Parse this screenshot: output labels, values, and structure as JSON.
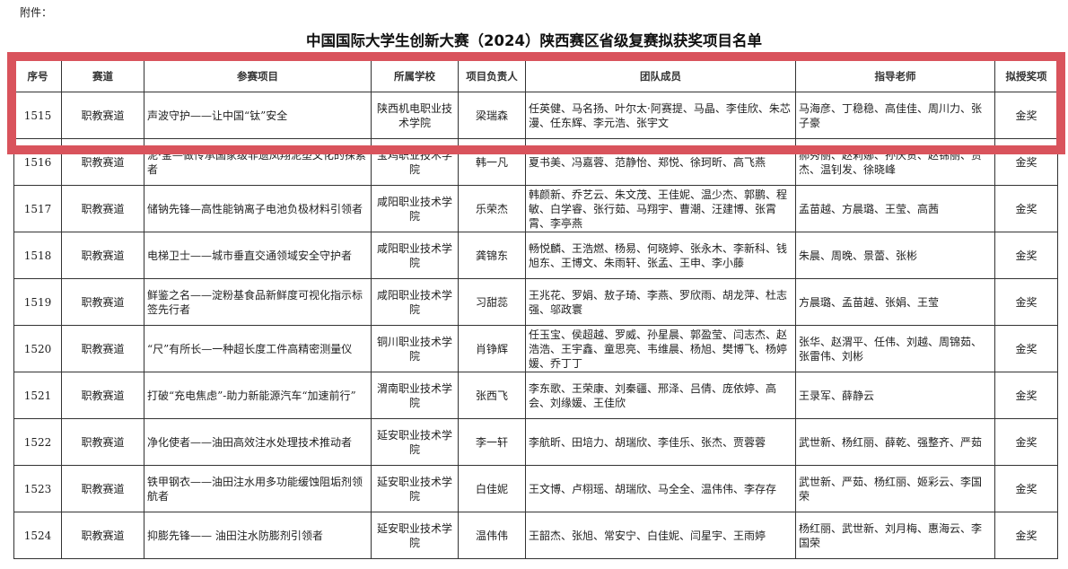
{
  "attachment_label": "附件：",
  "title": "中国国际大学生创新大赛（2024）陕西赛区省级复赛拟获奖项目名单",
  "highlight_color": "#d9535c",
  "table": {
    "headers": [
      "序号",
      "赛道",
      "参赛项目",
      "所属学校",
      "项目负责人",
      "团队成员",
      "指导老师",
      "拟授奖项"
    ],
    "rows": [
      [
        "1515",
        "职教赛道",
        "声波守护——让中国“钛”安全",
        "陕西机电职业技术学院",
        "梁瑞森",
        "任英健、马名扬、叶尔太·阿赛提、马晶、李佳欣、朱芯漫、任东辉、李元浩、张宇文",
        "马海彦、丁稳稳、高佳佳、周川力、张子豪",
        "金奖"
      ],
      [
        "1516",
        "职教赛道",
        "泥·釜—做传承国家级非遗凤翔泥塑文化的探索者",
        "宝鸡职业技术学院",
        "韩一凡",
        "夏书美、冯嘉蓉、范静怡、郑悦、徐珂昕、高飞燕",
        "郝秀丽、赵莉娜、孙庆贺、赵锦丽、贾杰、温钊发、徐晓峰",
        "金奖"
      ],
      [
        "1517",
        "职教赛道",
        "储钠先锋—高性能钠离子电池负极材料引领者",
        "咸阳职业技术学院",
        "乐荣杰",
        "韩颜新、乔艺云、朱文茂、王佳妮、温少杰、郭鹏、程敏、白学睿、张行茹、马翔宇、曹潮、汪建博、张霄霄、李亭燕",
        "孟苗越、方晨璐、王莹、高茜",
        "金奖"
      ],
      [
        "1518",
        "职教赛道",
        "电梯卫士——城市垂直交通领域安全守护者",
        "咸阳职业技术学院",
        "龚锦东",
        "畅悦麟、王浩燃、杨易、何晓婷、张永木、李新科、钱旭东、王博文、朱雨轩、张孟、王申、李小藤",
        "朱晨、周晚、景蕾、张彬",
        "金奖"
      ],
      [
        "1519",
        "职教赛道",
        "鲜鉴之名——淀粉基食品新鲜度可视化指示标签先行者",
        "咸阳职业技术学院",
        "习甜蕊",
        "王兆花、罗娟、敖子琦、李燕、罗欣雨、胡龙萍、杜志强、邬政寰",
        "方晨璐、孟苗越、张娟、王莹",
        "金奖"
      ],
      [
        "1520",
        "职教赛道",
        "“尺”有所长—一种超长度工件高精密测量仪",
        "铜川职业技术学院",
        "肖铮辉",
        "任玉宝、侯超越、罗威、孙星晨、郭盈莹、闫志杰、赵浩浩、王宇鑫、童思亮、韦维晨、杨旭、樊博飞、杨婷媛、乔丁丁",
        "张华、赵渭平、任伟、刘越、周锦茹、张雷伟、刘彬",
        "金奖"
      ],
      [
        "1521",
        "职教赛道",
        "打破“充电焦虑”-助力新能源汽车“加速前行”",
        "渭南职业技术学院",
        "张西飞",
        "李东歌、王荣康、刘秦疆、邢泽、吕倩、庞依婷、高会、刘缘媛、王佳欣",
        "王录军、薛静云",
        "金奖"
      ],
      [
        "1522",
        "职教赛道",
        "净化使者——油田高效注水处理技术推动者",
        "延安职业技术学院",
        "李一轩",
        "李航昕、田培力、胡瑞欣、李佳乐、张杰、贾蓉蓉",
        "武世新、杨红丽、薛乾、强整齐、严茹",
        "金奖"
      ],
      [
        "1523",
        "职教赛道",
        "铁甲钢衣——油田注水用多功能缓蚀阻垢剂领航者",
        "延安职业技术学院",
        "白佳妮",
        "王文博、卢栩瑶、胡瑞欣、马全全、温伟伟、李存存",
        "武世新、严茹、杨红丽、姬彩云、李国荣",
        "金奖"
      ],
      [
        "1524",
        "职教赛道",
        "抑膨先锋—— 油田注水防膨剂引领者",
        "延安职业技术学院",
        "温伟伟",
        "王韶杰、张旭、常安宁、白佳妮、闫星宇、王雨婷",
        "杨红丽、武世新、刘月梅、惠海云、李国荣",
        "金奖"
      ]
    ]
  }
}
